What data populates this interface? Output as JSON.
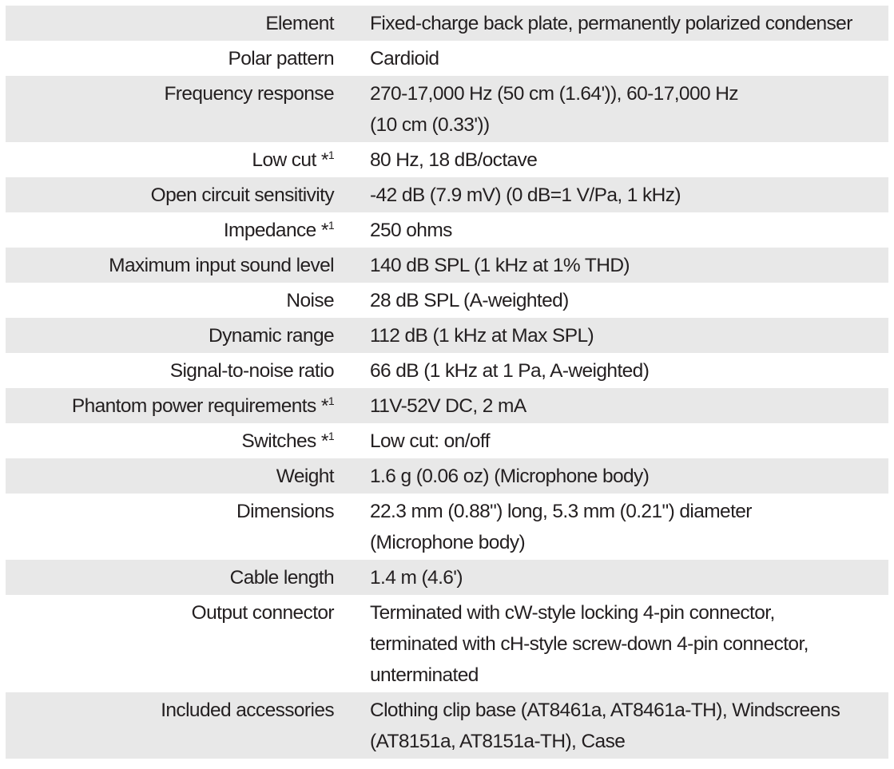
{
  "specs": [
    {
      "label": "Element",
      "note": "",
      "value": [
        "Fixed-charge back plate, permanently polarized condenser"
      ]
    },
    {
      "label": "Polar pattern",
      "note": "",
      "value": [
        "Cardioid"
      ]
    },
    {
      "label": "Frequency response",
      "note": "",
      "value": [
        "270-17,000 Hz (50 cm (1.64')), 60-17,000 Hz",
        "(10 cm (0.33'))"
      ]
    },
    {
      "label": "Low cut",
      "note": "*1",
      "value": [
        "80 Hz, 18 dB/octave"
      ]
    },
    {
      "label": "Open circuit sensitivity",
      "note": "",
      "value": [
        "-42 dB (7.9 mV) (0 dB=1 V/Pa, 1 kHz)"
      ]
    },
    {
      "label": "Impedance",
      "note": "*1",
      "value": [
        "250 ohms"
      ]
    },
    {
      "label": "Maximum input sound level",
      "note": "",
      "value": [
        "140 dB SPL (1 kHz at 1% THD)"
      ]
    },
    {
      "label": "Noise",
      "note": "",
      "value": [
        "28 dB SPL (A-weighted)"
      ]
    },
    {
      "label": "Dynamic range",
      "note": "",
      "value": [
        "112 dB (1 kHz at Max SPL)"
      ]
    },
    {
      "label": "Signal-to-noise ratio",
      "note": "",
      "value": [
        "66 dB (1 kHz at 1 Pa, A-weighted)"
      ]
    },
    {
      "label": "Phantom power requirements",
      "note": "*1",
      "value": [
        "11V-52V DC, 2 mA"
      ]
    },
    {
      "label": "Switches",
      "note": "*1",
      "value": [
        "Low cut: on/off"
      ]
    },
    {
      "label": "Weight",
      "note": "",
      "value": [
        "1.6 g (0.06 oz) (Microphone body)"
      ]
    },
    {
      "label": "Dimensions",
      "note": "",
      "value": [
        "22.3 mm (0.88\") long, 5.3 mm (0.21\") diameter",
        "(Microphone body)"
      ]
    },
    {
      "label": "Cable length",
      "note": "",
      "value": [
        "1.4 m (4.6')"
      ]
    },
    {
      "label": "Output connector",
      "note": "",
      "value": [
        "Terminated with cW-style locking 4-pin connector,",
        "terminated with cH-style screw-down 4-pin connector,",
        "unterminated"
      ]
    },
    {
      "label": "Included accessories",
      "note": "",
      "value": [
        "Clothing clip base (AT8461a, AT8461a-TH), Windscreens",
        "(AT8151a, AT8151a-TH), Case"
      ]
    }
  ],
  "colors": {
    "row_alt": "#e8e8e8",
    "text": "#231f20"
  }
}
